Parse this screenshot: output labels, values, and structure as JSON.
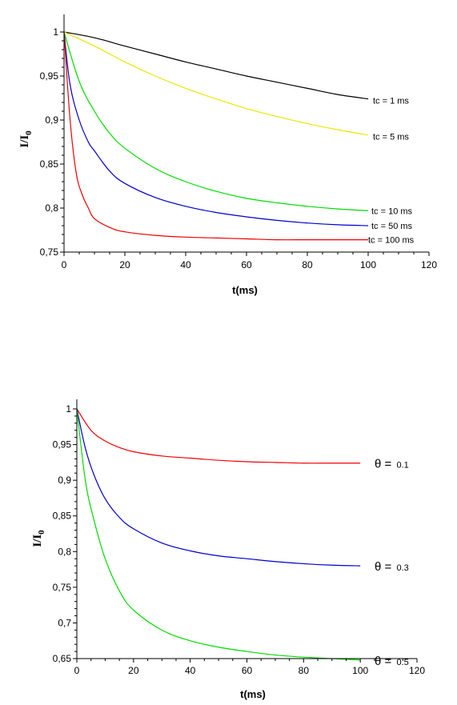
{
  "chart_data": [
    {
      "type": "line",
      "xlabel": "t(ms)",
      "ylabel": "I/I",
      "ylabel_sub": "0",
      "xlim": [
        0,
        120
      ],
      "ylim": [
        0.75,
        1.0
      ],
      "xticks": [
        "0",
        "20",
        "40",
        "60",
        "80",
        "100",
        "120"
      ],
      "yticks": [
        "0,75",
        "0,8",
        "0,85",
        "0,9",
        "0,95",
        "1"
      ],
      "grid": false,
      "series": [
        {
          "name": "tc = 1 ms",
          "color": "#000000",
          "x": [
            0,
            10,
            20,
            30,
            40,
            50,
            60,
            70,
            80,
            90,
            100
          ],
          "y": [
            1.0,
            0.9935,
            0.984,
            0.975,
            0.966,
            0.958,
            0.95,
            0.943,
            0.936,
            0.929,
            0.924
          ]
        },
        {
          "name": "tc = 5 ms",
          "color": "#e8e800",
          "x": [
            0,
            10,
            20,
            30,
            40,
            50,
            60,
            70,
            80,
            90,
            100
          ],
          "y": [
            1.0,
            0.984,
            0.966,
            0.95,
            0.936,
            0.924,
            0.913,
            0.904,
            0.896,
            0.889,
            0.883
          ]
        },
        {
          "name": "tc = 10 ms",
          "color": "#00dd00",
          "x": [
            0,
            5,
            10,
            15,
            20,
            30,
            40,
            50,
            60,
            70,
            80,
            90,
            100
          ],
          "y": [
            1.0,
            0.944,
            0.91,
            0.885,
            0.868,
            0.845,
            0.83,
            0.819,
            0.811,
            0.806,
            0.802,
            0.799,
            0.797
          ]
        },
        {
          "name": "tc = 50 ms",
          "color": "#0000cc",
          "x": [
            0,
            2,
            5,
            8,
            10,
            15,
            20,
            30,
            40,
            50,
            60,
            70,
            80,
            90,
            100
          ],
          "y": [
            1.0,
            0.94,
            0.9,
            0.875,
            0.865,
            0.842,
            0.828,
            0.812,
            0.802,
            0.795,
            0.79,
            0.786,
            0.783,
            0.781,
            0.78
          ]
        },
        {
          "name": "tc = 100 ms",
          "color": "#ee0000",
          "x": [
            0,
            2,
            4,
            6,
            8,
            10,
            15,
            20,
            30,
            40,
            50,
            60,
            70,
            80,
            90,
            100
          ],
          "y": [
            1.0,
            0.9,
            0.84,
            0.815,
            0.8,
            0.788,
            0.778,
            0.773,
            0.769,
            0.767,
            0.766,
            0.765,
            0.764,
            0.764,
            0.764,
            0.764
          ]
        }
      ]
    },
    {
      "type": "line",
      "xlabel": "t(ms)",
      "ylabel": "I/I",
      "ylabel_sub": "0",
      "xlim": [
        0,
        120
      ],
      "ylim": [
        0.65,
        1.0
      ],
      "xticks": [
        "0",
        "20",
        "40",
        "60",
        "80",
        "100",
        "120"
      ],
      "yticks": [
        "0,65",
        "0,7",
        "0,75",
        "0,8",
        "0,85",
        "0,9",
        "0,95",
        "1"
      ],
      "grid": false,
      "series": [
        {
          "name": "0.1",
          "prefix": "θ =",
          "color": "#ee0000",
          "x": [
            0,
            5,
            10,
            15,
            20,
            30,
            40,
            50,
            60,
            70,
            80,
            90,
            100
          ],
          "y": [
            1.0,
            0.97,
            0.955,
            0.946,
            0.94,
            0.934,
            0.931,
            0.928,
            0.926,
            0.925,
            0.924,
            0.924,
            0.924
          ]
        },
        {
          "name": "0.3",
          "prefix": "θ =",
          "color": "#0000cc",
          "x": [
            0,
            3,
            6,
            10,
            15,
            20,
            30,
            40,
            50,
            60,
            70,
            80,
            90,
            100
          ],
          "y": [
            1.0,
            0.945,
            0.908,
            0.874,
            0.848,
            0.832,
            0.812,
            0.801,
            0.794,
            0.79,
            0.786,
            0.783,
            0.781,
            0.78
          ]
        },
        {
          "name": "0.5",
          "prefix": "θ =",
          "color": "#00dd00",
          "x": [
            0,
            3,
            6,
            10,
            15,
            20,
            30,
            40,
            50,
            60,
            70,
            80,
            90,
            100
          ],
          "y": [
            1.0,
            0.9,
            0.845,
            0.79,
            0.745,
            0.718,
            0.69,
            0.675,
            0.666,
            0.66,
            0.655,
            0.652,
            0.65,
            0.648
          ]
        }
      ]
    }
  ]
}
